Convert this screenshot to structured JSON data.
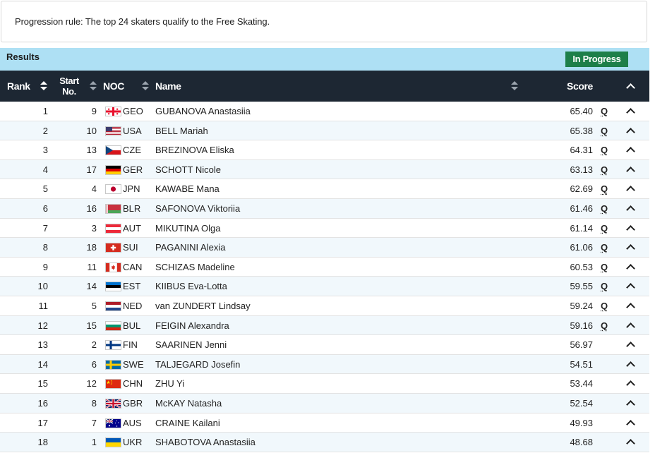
{
  "progression_rule": "Progression rule: The top 24 skaters qualify to the Free Skating.",
  "results_header": {
    "title": "Results",
    "status": "In Progress",
    "status_color": "#1d7f49"
  },
  "table": {
    "headers": {
      "rank": "Rank",
      "start_line1": "Start",
      "start_line2": "No.",
      "noc": "NOC",
      "name": "Name",
      "score": "Score"
    },
    "rows": [
      {
        "rank": "1",
        "start": "9",
        "noc": "GEO",
        "name": "GUBANOVA Anastasiia",
        "score": "65.40",
        "q": "Q"
      },
      {
        "rank": "2",
        "start": "10",
        "noc": "USA",
        "name": "BELL Mariah",
        "score": "65.38",
        "q": "Q"
      },
      {
        "rank": "3",
        "start": "13",
        "noc": "CZE",
        "name": "BREZINOVA Eliska",
        "score": "64.31",
        "q": "Q"
      },
      {
        "rank": "4",
        "start": "17",
        "noc": "GER",
        "name": "SCHOTT Nicole",
        "score": "63.13",
        "q": "Q"
      },
      {
        "rank": "5",
        "start": "4",
        "noc": "JPN",
        "name": "KAWABE Mana",
        "score": "62.69",
        "q": "Q"
      },
      {
        "rank": "6",
        "start": "16",
        "noc": "BLR",
        "name": "SAFONOVA Viktoriia",
        "score": "61.46",
        "q": "Q"
      },
      {
        "rank": "7",
        "start": "3",
        "noc": "AUT",
        "name": "MIKUTINA Olga",
        "score": "61.14",
        "q": "Q"
      },
      {
        "rank": "8",
        "start": "18",
        "noc": "SUI",
        "name": "PAGANINI Alexia",
        "score": "61.06",
        "q": "Q"
      },
      {
        "rank": "9",
        "start": "11",
        "noc": "CAN",
        "name": "SCHIZAS Madeline",
        "score": "60.53",
        "q": "Q"
      },
      {
        "rank": "10",
        "start": "14",
        "noc": "EST",
        "name": "KIIBUS Eva-Lotta",
        "score": "59.55",
        "q": "Q"
      },
      {
        "rank": "11",
        "start": "5",
        "noc": "NED",
        "name": "van ZUNDERT Lindsay",
        "score": "59.24",
        "q": "Q"
      },
      {
        "rank": "12",
        "start": "15",
        "noc": "BUL",
        "name": "FEIGIN Alexandra",
        "score": "59.16",
        "q": "Q"
      },
      {
        "rank": "13",
        "start": "2",
        "noc": "FIN",
        "name": "SAARINEN Jenni",
        "score": "56.97",
        "q": ""
      },
      {
        "rank": "14",
        "start": "6",
        "noc": "SWE",
        "name": "TALJEGARD Josefin",
        "score": "54.51",
        "q": ""
      },
      {
        "rank": "15",
        "start": "12",
        "noc": "CHN",
        "name": "ZHU Yi",
        "score": "53.44",
        "q": ""
      },
      {
        "rank": "16",
        "start": "8",
        "noc": "GBR",
        "name": "McKAY Natasha",
        "score": "52.54",
        "q": ""
      },
      {
        "rank": "17",
        "start": "7",
        "noc": "AUS",
        "name": "CRAINE Kailani",
        "score": "49.93",
        "q": ""
      },
      {
        "rank": "18",
        "start": "1",
        "noc": "UKR",
        "name": "SHABOTOVA Anastasiia",
        "score": "48.68",
        "q": ""
      }
    ]
  },
  "colors": {
    "header_bg": "#1d2733",
    "results_bar_bg": "#aee0f4",
    "alt_row_bg": "#f1f8fc"
  }
}
